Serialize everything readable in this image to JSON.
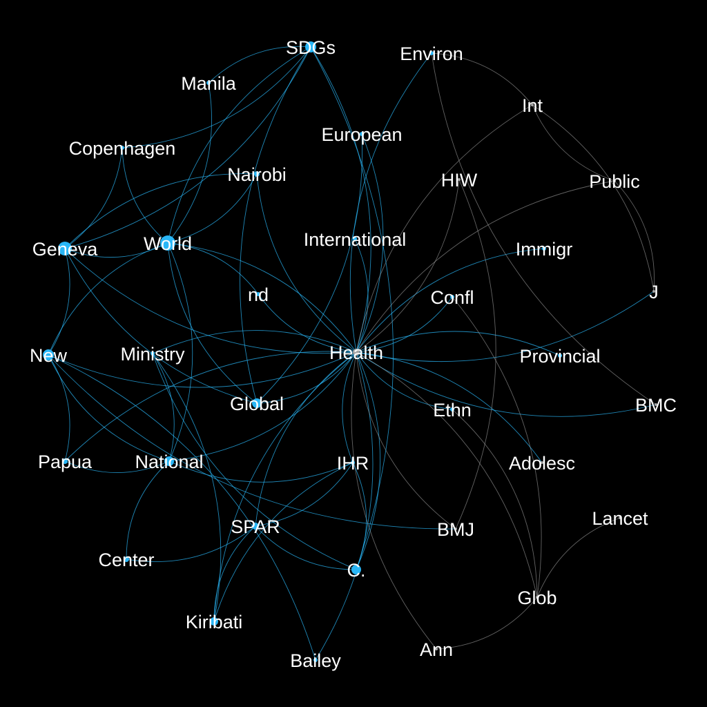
{
  "colors": {
    "background": "#000000",
    "blue": "#29b6f6",
    "gray": "#a6a6a6",
    "label": "#ffffff"
  },
  "nodes": [
    {
      "id": "SDGs",
      "label": "SDGs",
      "color": "blue",
      "size": 8
    },
    {
      "id": "Environ",
      "label": "Environ",
      "color": "blue",
      "size": 3
    },
    {
      "id": "Manila",
      "label": "Manila",
      "color": "blue",
      "size": 3
    },
    {
      "id": "Int",
      "label": "Int",
      "color": "gray",
      "size": 2
    },
    {
      "id": "European",
      "label": "European",
      "color": "blue",
      "size": 3
    },
    {
      "id": "Copenhagen",
      "label": "Copenhagen",
      "color": "blue",
      "size": 3
    },
    {
      "id": "Nairobi",
      "label": "Nairobi",
      "color": "blue",
      "size": 4
    },
    {
      "id": "HIW",
      "label": "HIW",
      "color": "gray",
      "size": 2
    },
    {
      "id": "Public",
      "label": "Public",
      "color": "gray",
      "size": 2
    },
    {
      "id": "Geneva",
      "label": "Geneva",
      "color": "blue",
      "size": 10
    },
    {
      "id": "World",
      "label": "World",
      "color": "blue",
      "size": 11
    },
    {
      "id": "International",
      "label": "International",
      "color": "blue",
      "size": 3
    },
    {
      "id": "Immigr",
      "label": "Immigr",
      "color": "blue",
      "size": 3
    },
    {
      "id": "J",
      "label": "J",
      "color": "gray",
      "size": 2
    },
    {
      "id": "nd",
      "label": "nd",
      "color": "blue",
      "size": 3
    },
    {
      "id": "Confl",
      "label": "Confl",
      "color": "blue",
      "size": 3
    },
    {
      "id": "Health",
      "label": "Health",
      "color": "gray",
      "size": 5
    },
    {
      "id": "New",
      "label": "New",
      "color": "blue",
      "size": 8
    },
    {
      "id": "Ministry",
      "label": "Ministry",
      "color": "blue",
      "size": 3
    },
    {
      "id": "Provincial",
      "label": "Provincial",
      "color": "blue",
      "size": 3
    },
    {
      "id": "BMC",
      "label": "BMC",
      "color": "gray",
      "size": 2
    },
    {
      "id": "Global",
      "label": "Global",
      "color": "blue",
      "size": 7
    },
    {
      "id": "Ethn",
      "label": "Ethn",
      "color": "blue",
      "size": 3
    },
    {
      "id": "Papua",
      "label": "Papua",
      "color": "blue",
      "size": 4
    },
    {
      "id": "National",
      "label": "National",
      "color": "blue",
      "size": 7
    },
    {
      "id": "IHR",
      "label": "IHR",
      "color": "blue",
      "size": 3
    },
    {
      "id": "Adolesc",
      "label": "Adolesc",
      "color": "gray",
      "size": 2
    },
    {
      "id": "Lancet",
      "label": "Lancet",
      "color": "gray",
      "size": 2
    },
    {
      "id": "SPAR",
      "label": "SPAR",
      "color": "blue",
      "size": 5
    },
    {
      "id": "BMJ",
      "label": "BMJ",
      "color": "gray",
      "size": 2
    },
    {
      "id": "Center",
      "label": "Center",
      "color": "blue",
      "size": 4
    },
    {
      "id": "C.",
      "label": "C.",
      "color": "blue",
      "size": 7
    },
    {
      "id": "Glob",
      "label": "Glob",
      "color": "gray",
      "size": 2
    },
    {
      "id": "Kiribati",
      "label": "Kiribati",
      "color": "blue",
      "size": 6
    },
    {
      "id": "Ann",
      "label": "Ann",
      "color": "gray",
      "size": 2
    },
    {
      "id": "Bailey",
      "label": "Bailey",
      "color": "blue",
      "size": 3
    }
  ],
  "edges": [
    {
      "source": "Health",
      "target": "SDGs",
      "color": "blue"
    },
    {
      "source": "Health",
      "target": "Environ",
      "color": "blue"
    },
    {
      "source": "Health",
      "target": "European",
      "color": "blue"
    },
    {
      "source": "Health",
      "target": "Nairobi",
      "color": "blue"
    },
    {
      "source": "Health",
      "target": "World",
      "color": "blue"
    },
    {
      "source": "Health",
      "target": "Geneva",
      "color": "blue"
    },
    {
      "source": "Health",
      "target": "International",
      "color": "blue"
    },
    {
      "source": "Health",
      "target": "Immigr",
      "color": "blue"
    },
    {
      "source": "Health",
      "target": "J",
      "color": "blue"
    },
    {
      "source": "Health",
      "target": "nd",
      "color": "blue"
    },
    {
      "source": "Health",
      "target": "Confl",
      "color": "blue"
    },
    {
      "source": "Health",
      "target": "New",
      "color": "blue"
    },
    {
      "source": "Health",
      "target": "Ministry",
      "color": "blue"
    },
    {
      "source": "Health",
      "target": "Provincial",
      "color": "blue"
    },
    {
      "source": "Health",
      "target": "BMC",
      "color": "blue"
    },
    {
      "source": "Health",
      "target": "Global",
      "color": "blue"
    },
    {
      "source": "Health",
      "target": "Ethn",
      "color": "blue"
    },
    {
      "source": "Health",
      "target": "National",
      "color": "blue"
    },
    {
      "source": "Health",
      "target": "IHR",
      "color": "blue"
    },
    {
      "source": "Health",
      "target": "Adolesc",
      "color": "blue"
    },
    {
      "source": "Health",
      "target": "SPAR",
      "color": "blue"
    },
    {
      "source": "Health",
      "target": "C.",
      "color": "blue"
    },
    {
      "source": "Health",
      "target": "Kiribati",
      "color": "blue"
    },
    {
      "source": "Health",
      "target": "Bailey",
      "color": "blue"
    },
    {
      "source": "Health",
      "target": "Papua",
      "color": "blue"
    },
    {
      "source": "Health",
      "target": "Int",
      "color": "gray"
    },
    {
      "source": "Health",
      "target": "HIW",
      "color": "gray"
    },
    {
      "source": "Health",
      "target": "Public",
      "color": "gray"
    },
    {
      "source": "Health",
      "target": "BMJ",
      "color": "gray"
    },
    {
      "source": "Health",
      "target": "Glob",
      "color": "gray"
    },
    {
      "source": "Health",
      "target": "Ann",
      "color": "gray"
    },
    {
      "source": "World",
      "target": "SDGs",
      "color": "blue"
    },
    {
      "source": "World",
      "target": "Manila",
      "color": "blue"
    },
    {
      "source": "World",
      "target": "Copenhagen",
      "color": "blue"
    },
    {
      "source": "World",
      "target": "Nairobi",
      "color": "blue"
    },
    {
      "source": "World",
      "target": "Geneva",
      "color": "blue"
    },
    {
      "source": "World",
      "target": "New",
      "color": "blue"
    },
    {
      "source": "World",
      "target": "National",
      "color": "blue"
    },
    {
      "source": "World",
      "target": "Global",
      "color": "blue"
    },
    {
      "source": "World",
      "target": "nd",
      "color": "blue"
    },
    {
      "source": "Geneva",
      "target": "SDGs",
      "color": "blue"
    },
    {
      "source": "Geneva",
      "target": "Nairobi",
      "color": "blue"
    },
    {
      "source": "Geneva",
      "target": "Copenhagen",
      "color": "blue"
    },
    {
      "source": "Geneva",
      "target": "New",
      "color": "blue"
    },
    {
      "source": "Geneva",
      "target": "Global",
      "color": "blue"
    },
    {
      "source": "SDGs",
      "target": "Copenhagen",
      "color": "blue"
    },
    {
      "source": "SDGs",
      "target": "Manila",
      "color": "blue"
    },
    {
      "source": "SDGs",
      "target": "C.",
      "color": "blue"
    },
    {
      "source": "SDGs",
      "target": "Global",
      "color": "blue"
    },
    {
      "source": "New",
      "target": "Papua",
      "color": "blue"
    },
    {
      "source": "New",
      "target": "National",
      "color": "blue"
    },
    {
      "source": "New",
      "target": "Bailey",
      "color": "blue"
    },
    {
      "source": "New",
      "target": "BMJ",
      "color": "blue"
    },
    {
      "source": "Ministry",
      "target": "Kiribati",
      "color": "blue"
    },
    {
      "source": "Ministry",
      "target": "C.",
      "color": "blue"
    },
    {
      "source": "Ministry",
      "target": "National",
      "color": "blue"
    },
    {
      "source": "National",
      "target": "Center",
      "color": "blue"
    },
    {
      "source": "National",
      "target": "Papua",
      "color": "blue"
    },
    {
      "source": "National",
      "target": "IHR",
      "color": "blue"
    },
    {
      "source": "IHR",
      "target": "SPAR",
      "color": "blue"
    },
    {
      "source": "IHR",
      "target": "Kiribati",
      "color": "blue"
    },
    {
      "source": "IHR",
      "target": "C.",
      "color": "blue"
    },
    {
      "source": "SPAR",
      "target": "C.",
      "color": "blue"
    },
    {
      "source": "SPAR",
      "target": "Center",
      "color": "blue"
    },
    {
      "source": "SPAR",
      "target": "Kiribati",
      "color": "blue"
    },
    {
      "source": "European",
      "target": "Global",
      "color": "blue"
    },
    {
      "source": "Int",
      "target": "Public",
      "color": "gray"
    },
    {
      "source": "Int",
      "target": "J",
      "color": "gray"
    },
    {
      "source": "Int",
      "target": "Environ",
      "color": "gray"
    },
    {
      "source": "Public",
      "target": "J",
      "color": "gray"
    },
    {
      "source": "Environ",
      "target": "BMC",
      "color": "gray"
    },
    {
      "source": "Ethn",
      "target": "Glob",
      "color": "gray"
    },
    {
      "source": "Lancet",
      "target": "Glob",
      "color": "gray"
    },
    {
      "source": "Glob",
      "target": "Ann",
      "color": "gray"
    },
    {
      "source": "Glob",
      "target": "Confl",
      "color": "gray"
    },
    {
      "source": "HIW",
      "target": "BMJ",
      "color": "gray"
    }
  ]
}
